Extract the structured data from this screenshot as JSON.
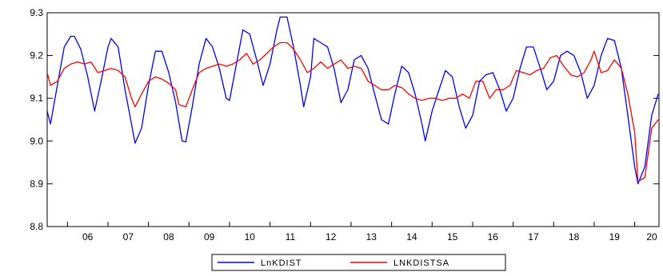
{
  "chart_data": {
    "type": "line",
    "title": "",
    "xlabel": "",
    "ylabel": "",
    "ylim": [
      8.8,
      9.3
    ],
    "xlim": [
      2005.5,
      2020.6
    ],
    "yticks": [
      "8.8",
      "8.9",
      "9.0",
      "9.1",
      "9.2",
      "9.3"
    ],
    "xticks": [
      {
        "year": 2006,
        "label": "06"
      },
      {
        "year": 2007,
        "label": "07"
      },
      {
        "year": 2008,
        "label": "08"
      },
      {
        "year": 2009,
        "label": "09"
      },
      {
        "year": 2010,
        "label": "10"
      },
      {
        "year": 2011,
        "label": "11"
      },
      {
        "year": 2012,
        "label": "12"
      },
      {
        "year": 2013,
        "label": "13"
      },
      {
        "year": 2014,
        "label": "14"
      },
      {
        "year": 2015,
        "label": "15"
      },
      {
        "year": 2016,
        "label": "16"
      },
      {
        "year": 2017,
        "label": "17"
      },
      {
        "year": 2018,
        "label": "18"
      },
      {
        "year": 2019,
        "label": "19"
      },
      {
        "year": 2020,
        "label": "20"
      }
    ],
    "grid": false,
    "legend_position": "bottom-center",
    "series": [
      {
        "name": "LnKDIST",
        "color": "#0000ff",
        "points": [
          [
            2005.5,
            9.07
          ],
          [
            2005.58,
            9.04
          ],
          [
            2005.75,
            9.13
          ],
          [
            2005.92,
            9.22
          ],
          [
            2006.08,
            9.245
          ],
          [
            2006.17,
            9.245
          ],
          [
            2006.33,
            9.215
          ],
          [
            2006.5,
            9.15
          ],
          [
            2006.67,
            9.07
          ],
          [
            2006.83,
            9.14
          ],
          [
            2007.0,
            9.22
          ],
          [
            2007.08,
            9.24
          ],
          [
            2007.25,
            9.22
          ],
          [
            2007.42,
            9.12
          ],
          [
            2007.58,
            9.04
          ],
          [
            2007.67,
            8.995
          ],
          [
            2007.83,
            9.03
          ],
          [
            2008.0,
            9.13
          ],
          [
            2008.17,
            9.21
          ],
          [
            2008.33,
            9.21
          ],
          [
            2008.5,
            9.16
          ],
          [
            2008.67,
            9.09
          ],
          [
            2008.83,
            9.0
          ],
          [
            2008.92,
            8.998
          ],
          [
            2009.08,
            9.08
          ],
          [
            2009.25,
            9.18
          ],
          [
            2009.42,
            9.24
          ],
          [
            2009.58,
            9.22
          ],
          [
            2009.75,
            9.17
          ],
          [
            2009.92,
            9.1
          ],
          [
            2010.0,
            9.095
          ],
          [
            2010.17,
            9.18
          ],
          [
            2010.33,
            9.26
          ],
          [
            2010.5,
            9.25
          ],
          [
            2010.67,
            9.19
          ],
          [
            2010.83,
            9.13
          ],
          [
            2011.0,
            9.18
          ],
          [
            2011.17,
            9.26
          ],
          [
            2011.25,
            9.29
          ],
          [
            2011.42,
            9.29
          ],
          [
            2011.58,
            9.22
          ],
          [
            2011.75,
            9.13
          ],
          [
            2011.83,
            9.08
          ],
          [
            2012.0,
            9.15
          ],
          [
            2012.08,
            9.24
          ],
          [
            2012.25,
            9.23
          ],
          [
            2012.42,
            9.22
          ],
          [
            2012.58,
            9.17
          ],
          [
            2012.75,
            9.09
          ],
          [
            2012.92,
            9.12
          ],
          [
            2013.08,
            9.19
          ],
          [
            2013.25,
            9.2
          ],
          [
            2013.42,
            9.17
          ],
          [
            2013.58,
            9.11
          ],
          [
            2013.75,
            9.05
          ],
          [
            2013.92,
            9.04
          ],
          [
            2014.08,
            9.11
          ],
          [
            2014.25,
            9.175
          ],
          [
            2014.42,
            9.16
          ],
          [
            2014.58,
            9.11
          ],
          [
            2014.75,
            9.04
          ],
          [
            2014.83,
            9.0
          ],
          [
            2015.0,
            9.07
          ],
          [
            2015.17,
            9.12
          ],
          [
            2015.33,
            9.165
          ],
          [
            2015.5,
            9.15
          ],
          [
            2015.67,
            9.08
          ],
          [
            2015.83,
            9.03
          ],
          [
            2016.0,
            9.06
          ],
          [
            2016.17,
            9.14
          ],
          [
            2016.33,
            9.155
          ],
          [
            2016.5,
            9.16
          ],
          [
            2016.67,
            9.12
          ],
          [
            2016.83,
            9.07
          ],
          [
            2017.0,
            9.1
          ],
          [
            2017.17,
            9.17
          ],
          [
            2017.33,
            9.22
          ],
          [
            2017.5,
            9.22
          ],
          [
            2017.67,
            9.17
          ],
          [
            2017.83,
            9.12
          ],
          [
            2018.0,
            9.14
          ],
          [
            2018.17,
            9.2
          ],
          [
            2018.33,
            9.21
          ],
          [
            2018.5,
            9.2
          ],
          [
            2018.67,
            9.16
          ],
          [
            2018.83,
            9.1
          ],
          [
            2019.0,
            9.13
          ],
          [
            2019.17,
            9.2
          ],
          [
            2019.33,
            9.24
          ],
          [
            2019.5,
            9.235
          ],
          [
            2019.67,
            9.17
          ],
          [
            2019.83,
            9.06
          ],
          [
            2020.0,
            8.94
          ],
          [
            2020.08,
            8.9
          ],
          [
            2020.25,
            8.94
          ],
          [
            2020.42,
            9.06
          ],
          [
            2020.58,
            9.11
          ]
        ]
      },
      {
        "name": "LNKDISTSA",
        "color": "#ff0000",
        "points": [
          [
            2005.5,
            9.16
          ],
          [
            2005.58,
            9.13
          ],
          [
            2005.75,
            9.14
          ],
          [
            2005.92,
            9.17
          ],
          [
            2006.08,
            9.18
          ],
          [
            2006.25,
            9.185
          ],
          [
            2006.42,
            9.18
          ],
          [
            2006.58,
            9.185
          ],
          [
            2006.75,
            9.16
          ],
          [
            2006.92,
            9.165
          ],
          [
            2007.08,
            9.17
          ],
          [
            2007.25,
            9.165
          ],
          [
            2007.42,
            9.15
          ],
          [
            2007.58,
            9.1
          ],
          [
            2007.67,
            9.08
          ],
          [
            2007.83,
            9.11
          ],
          [
            2008.0,
            9.14
          ],
          [
            2008.17,
            9.15
          ],
          [
            2008.33,
            9.145
          ],
          [
            2008.5,
            9.135
          ],
          [
            2008.67,
            9.12
          ],
          [
            2008.75,
            9.085
          ],
          [
            2008.92,
            9.08
          ],
          [
            2009.08,
            9.12
          ],
          [
            2009.25,
            9.16
          ],
          [
            2009.42,
            9.17
          ],
          [
            2009.58,
            9.175
          ],
          [
            2009.75,
            9.18
          ],
          [
            2009.92,
            9.175
          ],
          [
            2010.08,
            9.18
          ],
          [
            2010.25,
            9.19
          ],
          [
            2010.42,
            9.205
          ],
          [
            2010.58,
            9.18
          ],
          [
            2010.75,
            9.19
          ],
          [
            2010.92,
            9.205
          ],
          [
            2011.08,
            9.22
          ],
          [
            2011.25,
            9.23
          ],
          [
            2011.42,
            9.23
          ],
          [
            2011.58,
            9.215
          ],
          [
            2011.75,
            9.19
          ],
          [
            2011.92,
            9.16
          ],
          [
            2012.08,
            9.17
          ],
          [
            2012.25,
            9.185
          ],
          [
            2012.42,
            9.17
          ],
          [
            2012.58,
            9.18
          ],
          [
            2012.75,
            9.19
          ],
          [
            2012.92,
            9.17
          ],
          [
            2013.08,
            9.175
          ],
          [
            2013.25,
            9.17
          ],
          [
            2013.42,
            9.14
          ],
          [
            2013.58,
            9.13
          ],
          [
            2013.75,
            9.12
          ],
          [
            2013.92,
            9.12
          ],
          [
            2014.08,
            9.13
          ],
          [
            2014.25,
            9.125
          ],
          [
            2014.42,
            9.11
          ],
          [
            2014.58,
            9.1
          ],
          [
            2014.75,
            9.095
          ],
          [
            2014.92,
            9.1
          ],
          [
            2015.08,
            9.1
          ],
          [
            2015.25,
            9.095
          ],
          [
            2015.42,
            9.1
          ],
          [
            2015.58,
            9.1
          ],
          [
            2015.75,
            9.11
          ],
          [
            2015.92,
            9.1
          ],
          [
            2016.08,
            9.14
          ],
          [
            2016.25,
            9.14
          ],
          [
            2016.42,
            9.1
          ],
          [
            2016.58,
            9.12
          ],
          [
            2016.75,
            9.12
          ],
          [
            2016.92,
            9.13
          ],
          [
            2017.08,
            9.165
          ],
          [
            2017.25,
            9.16
          ],
          [
            2017.42,
            9.155
          ],
          [
            2017.58,
            9.165
          ],
          [
            2017.75,
            9.17
          ],
          [
            2017.92,
            9.195
          ],
          [
            2018.08,
            9.2
          ],
          [
            2018.25,
            9.175
          ],
          [
            2018.42,
            9.155
          ],
          [
            2018.58,
            9.15
          ],
          [
            2018.75,
            9.16
          ],
          [
            2018.92,
            9.19
          ],
          [
            2019.0,
            9.21
          ],
          [
            2019.17,
            9.16
          ],
          [
            2019.33,
            9.165
          ],
          [
            2019.5,
            9.19
          ],
          [
            2019.67,
            9.17
          ],
          [
            2019.83,
            9.11
          ],
          [
            2020.0,
            9.02
          ],
          [
            2020.08,
            8.905
          ],
          [
            2020.25,
            8.915
          ],
          [
            2020.42,
            9.03
          ],
          [
            2020.58,
            9.05
          ]
        ]
      }
    ]
  }
}
